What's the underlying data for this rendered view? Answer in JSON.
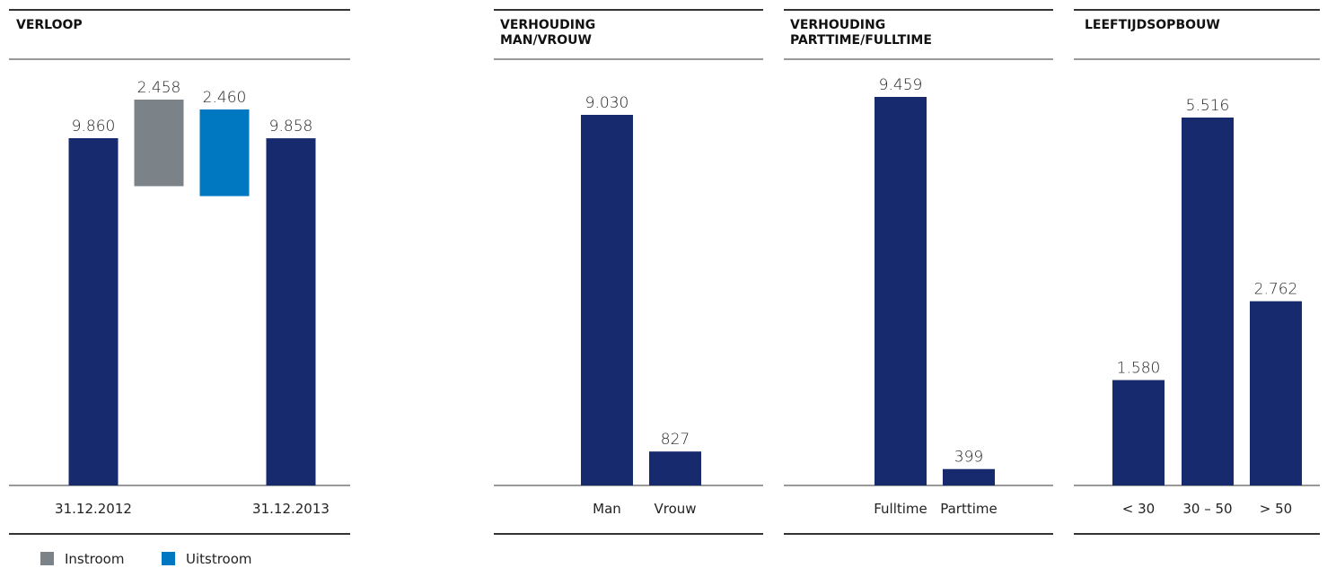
{
  "chart_data": [
    {
      "type": "waterfall",
      "title": "VERLOOP",
      "categories": [
        "31.12.2012",
        null,
        null,
        "31.12.2013"
      ],
      "values": [
        9860,
        2458,
        2460,
        9858
      ],
      "value_labels": [
        "9.860",
        "2.458",
        "2.460",
        "9.858"
      ],
      "colors": [
        "#172a6e",
        "#7b8389",
        "#0077c1",
        "#172a6e"
      ],
      "legend": [
        {
          "name": "Instroom",
          "color": "#7b8389"
        },
        {
          "name": "Uitstroom",
          "color": "#0077c1"
        }
      ]
    },
    {
      "type": "bar",
      "title": "VERHOUDING\nMAN/VROUW",
      "categories": [
        "Man",
        "Vrouw"
      ],
      "values": [
        9030,
        827
      ],
      "value_labels": [
        "9.030",
        "827"
      ],
      "color": "#172a6e"
    },
    {
      "type": "bar",
      "title": "VERHOUDING\nPARTTIME/FULLTIME",
      "categories": [
        "Fulltime",
        "Parttime"
      ],
      "values": [
        9459,
        399
      ],
      "value_labels": [
        "9.459",
        "399"
      ],
      "color": "#172a6e"
    },
    {
      "type": "bar",
      "title": "LEEFTIJDSOPBOUW",
      "categories": [
        "< 30",
        "30 – 50",
        "> 50"
      ],
      "values": [
        1580,
        5516,
        2762
      ],
      "value_labels": [
        "1.580",
        "5.516",
        "2.762"
      ],
      "color": "#172a6e"
    }
  ]
}
